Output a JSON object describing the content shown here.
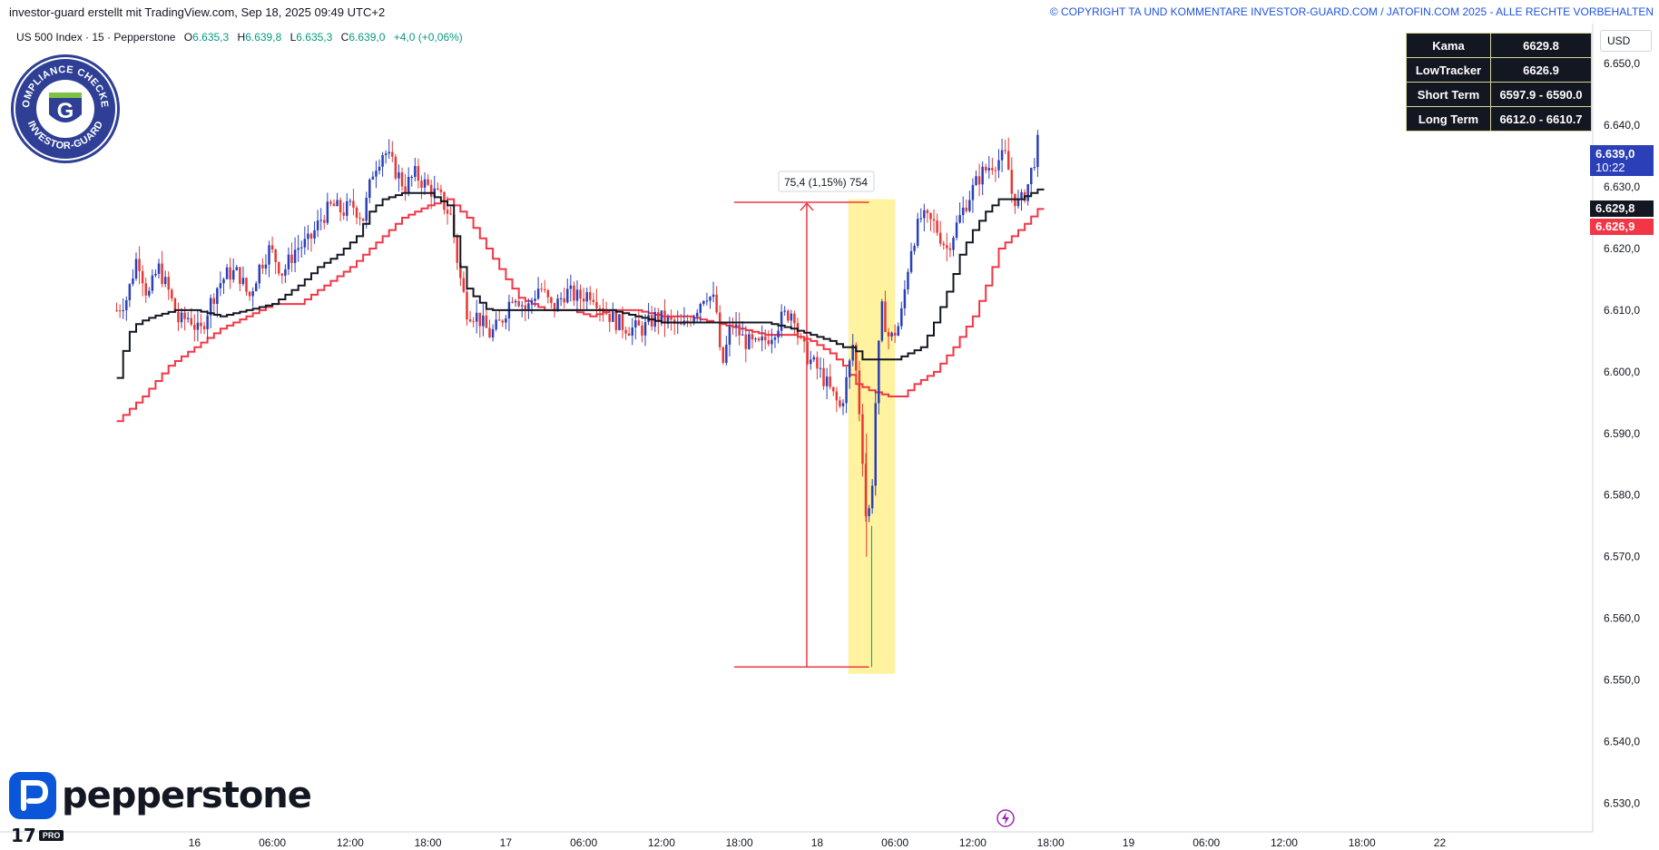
{
  "header": {
    "left_text": "investor-guard erstellt mit TradingView.com, Sep 18, 2025 09:49 UTC+2",
    "right_text": "© COPYRIGHT TA UND KOMMENTARE INVESTOR-GUARD.COM / JATOFIN.COM 2025 - ALLE RECHTE VORBEHALTEN"
  },
  "legend": {
    "symbol": "US 500 Index · 15 · Pepperstone",
    "o_label": "O",
    "o_value": "6.635,3",
    "h_label": "H",
    "h_value": "6.639,8",
    "l_label": "L",
    "l_value": "6.635,3",
    "c_label": "C",
    "c_value": "6.639,0",
    "change": "+4,0 (+0,06%)"
  },
  "info_table": [
    {
      "name": "Kama",
      "value": "6629.8"
    },
    {
      "name": "LowTracker",
      "value": "6626.9"
    },
    {
      "name": "Short Term",
      "value": "6597.9 - 6590.0"
    },
    {
      "name": "Long Term",
      "value": "6612.0 - 6610.7"
    }
  ],
  "currency": "USD",
  "price_labels": {
    "last_price": "6.639,0",
    "countdown": "10:22",
    "kama": "6.629,8",
    "lowtracker": "6.626,9"
  },
  "measure_label": "75,4 (1,15%) 754",
  "badge": {
    "top_text": "COMPLIANCE CHECKED",
    "bottom_text": "INVESTOR-GUARD",
    "letter": "G"
  },
  "brand": {
    "name": "pepperstone",
    "tv_mark": "17",
    "tv_pro": "PRO"
  },
  "colors": {
    "up": "#2a3fb8",
    "down": "#e53935",
    "kama": "#131722",
    "lowtracker": "#f23645",
    "measure": "#f23645",
    "highlight": "#fff29a",
    "last_price_bg": "#2a3fb8",
    "axis_text": "#131722"
  },
  "chart_data": {
    "type": "candlestick",
    "yaxis_ticks": [
      "6.650,0",
      "6.640,0",
      "6.630,0",
      "6.620,0",
      "6.610,0",
      "6.600,0",
      "6.590,0",
      "6.580,0",
      "6.570,0",
      "6.560,0",
      "6.550,0",
      "6.540,0",
      "6.530,0"
    ],
    "y_tick_values": [
      6650,
      6640,
      6630,
      6620,
      6610,
      6600,
      6590,
      6580,
      6570,
      6560,
      6550,
      6540,
      6530
    ],
    "ylim": [
      6525.5,
      6656.5
    ],
    "xaxis_ticks": [
      "16",
      "06:00",
      "12:00",
      "18:00",
      "17",
      "06:00",
      "12:00",
      "18:00",
      "18",
      "06:00",
      "12:00",
      "18:00",
      "19",
      "06:00",
      "12:00",
      "18:00",
      "22"
    ],
    "x_tick_hours": [
      6,
      12,
      18,
      24,
      30,
      36,
      42,
      48,
      54,
      60,
      66,
      72,
      78,
      84,
      90,
      96,
      102
    ],
    "x_unit": "hours since 15 Sep 18:00 (UTC+2)",
    "xlim": [
      0.8,
      112.6
    ],
    "close_path": [
      [
        0.0,
        6610
      ],
      [
        0.8,
        6612
      ],
      [
        1.6,
        6619
      ],
      [
        2.4,
        6612
      ],
      [
        3.2,
        6617
      ],
      [
        4.0,
        6613
      ],
      [
        4.8,
        6608
      ],
      [
        5.6,
        6609
      ],
      [
        6.4,
        6606
      ],
      [
        7.0,
        6610
      ],
      [
        7.8,
        6614
      ],
      [
        8.6,
        6616
      ],
      [
        9.4,
        6616
      ],
      [
        10.2,
        6612
      ],
      [
        11.0,
        6617
      ],
      [
        11.8,
        6620
      ],
      [
        12.8,
        6616
      ],
      [
        13.8,
        6620
      ],
      [
        14.8,
        6621
      ],
      [
        15.8,
        6625
      ],
      [
        16.6,
        6627
      ],
      [
        17.4,
        6626
      ],
      [
        18.2,
        6627
      ],
      [
        19.0,
        6625
      ],
      [
        19.8,
        6633
      ],
      [
        20.6,
        6636
      ],
      [
        21.4,
        6633
      ],
      [
        22.2,
        6630
      ],
      [
        23.0,
        6632
      ],
      [
        24.0,
        6630
      ],
      [
        25.0,
        6628
      ],
      [
        25.8,
        6625
      ],
      [
        26.4,
        6616
      ],
      [
        27.0,
        6610
      ],
      [
        27.8,
        6609
      ],
      [
        28.8,
        6606
      ],
      [
        29.6,
        6608
      ],
      [
        30.6,
        6613
      ],
      [
        31.6,
        6610
      ],
      [
        32.6,
        6614
      ],
      [
        33.6,
        6610
      ],
      [
        34.6,
        6613
      ],
      [
        35.6,
        6612
      ],
      [
        36.6,
        6613
      ],
      [
        37.6,
        6610
      ],
      [
        38.6,
        6608
      ],
      [
        39.6,
        6607
      ],
      [
        40.6,
        6607
      ],
      [
        41.6,
        6609
      ],
      [
        42.6,
        6608
      ],
      [
        43.6,
        6607
      ],
      [
        44.6,
        6610
      ],
      [
        45.4,
        6613
      ],
      [
        46.2,
        6611
      ],
      [
        46.6,
        6600
      ],
      [
        47.4,
        6608
      ],
      [
        48.4,
        6605
      ],
      [
        49.4,
        6604
      ],
      [
        50.4,
        6606
      ],
      [
        51.4,
        6609
      ],
      [
        52.2,
        6610
      ],
      [
        52.6,
        6605
      ],
      [
        53.4,
        6602
      ],
      [
        54.2,
        6600
      ],
      [
        55.0,
        6597
      ],
      [
        55.8,
        6594
      ],
      [
        56.4,
        6600
      ],
      [
        56.8,
        6605
      ],
      [
        57.4,
        6590
      ],
      [
        57.8,
        6575
      ],
      [
        58.2,
        6580
      ],
      [
        58.6,
        6600
      ],
      [
        59.0,
        6610
      ],
      [
        59.6,
        6605
      ],
      [
        60.4,
        6608
      ],
      [
        61.2,
        6620
      ],
      [
        62.0,
        6625
      ],
      [
        63.0,
        6624
      ],
      [
        64.0,
        6620
      ],
      [
        64.8,
        6624
      ],
      [
        65.6,
        6628
      ],
      [
        66.6,
        6632
      ],
      [
        67.6,
        6634
      ],
      [
        68.6,
        6635
      ],
      [
        69.0,
        6629
      ],
      [
        69.6,
        6627
      ],
      [
        70.2,
        6630
      ],
      [
        70.8,
        6635
      ],
      [
        71.2,
        6639
      ]
    ],
    "kama_path": [
      [
        0.0,
        6599
      ],
      [
        0.8,
        6606
      ],
      [
        1.6,
        6608
      ],
      [
        2.8,
        6609
      ],
      [
        4.5,
        6610
      ],
      [
        6.0,
        6610
      ],
      [
        8.0,
        6609
      ],
      [
        10.0,
        6610
      ],
      [
        12.0,
        6611
      ],
      [
        14.0,
        6614
      ],
      [
        15.5,
        6617
      ],
      [
        17.0,
        6619
      ],
      [
        18.5,
        6622
      ],
      [
        19.5,
        6626
      ],
      [
        20.5,
        6628
      ],
      [
        22.0,
        6629
      ],
      [
        24.0,
        6629
      ],
      [
        25.5,
        6627
      ],
      [
        26.2,
        6620
      ],
      [
        26.8,
        6614
      ],
      [
        27.6,
        6612
      ],
      [
        28.6,
        6610
      ],
      [
        30.0,
        6610
      ],
      [
        32.0,
        6610
      ],
      [
        34.0,
        6610
      ],
      [
        36.0,
        6610
      ],
      [
        38.0,
        6610
      ],
      [
        40.0,
        6609
      ],
      [
        42.0,
        6608
      ],
      [
        44.0,
        6608
      ],
      [
        46.0,
        6608
      ],
      [
        48.0,
        6608
      ],
      [
        50.0,
        6608
      ],
      [
        52.0,
        6607
      ],
      [
        53.5,
        6606
      ],
      [
        55.0,
        6605
      ],
      [
        56.0,
        6604
      ],
      [
        56.8,
        6604
      ],
      [
        57.4,
        6602
      ],
      [
        58.4,
        6602
      ],
      [
        60.0,
        6602
      ],
      [
        61.0,
        6603
      ],
      [
        62.0,
        6604
      ],
      [
        62.8,
        6607
      ],
      [
        63.4,
        6610
      ],
      [
        64.2,
        6614
      ],
      [
        65.0,
        6619
      ],
      [
        66.0,
        6623
      ],
      [
        67.0,
        6626
      ],
      [
        68.0,
        6628
      ],
      [
        69.5,
        6628
      ],
      [
        70.5,
        6629
      ],
      [
        71.2,
        6629.8
      ]
    ],
    "lowtracker_path": [
      [
        0.0,
        6592
      ],
      [
        2.0,
        6596
      ],
      [
        4.0,
        6601
      ],
      [
        6.0,
        6604
      ],
      [
        8.0,
        6607
      ],
      [
        10.0,
        6609
      ],
      [
        12.0,
        6611
      ],
      [
        14.0,
        6611
      ],
      [
        16.0,
        6614
      ],
      [
        18.0,
        6617
      ],
      [
        20.0,
        6621
      ],
      [
        22.0,
        6625
      ],
      [
        24.0,
        6627
      ],
      [
        25.5,
        6628
      ],
      [
        27.0,
        6625
      ],
      [
        28.5,
        6620
      ],
      [
        30.0,
        6615
      ],
      [
        31.0,
        6612
      ],
      [
        33.0,
        6610
      ],
      [
        35.0,
        6610
      ],
      [
        36.5,
        6609
      ],
      [
        38.0,
        6610
      ],
      [
        40.0,
        6610
      ],
      [
        42.0,
        6609
      ],
      [
        44.0,
        6609
      ],
      [
        46.0,
        6608
      ],
      [
        48.0,
        6607
      ],
      [
        50.0,
        6606
      ],
      [
        52.0,
        6606
      ],
      [
        53.5,
        6605
      ],
      [
        55.0,
        6603
      ],
      [
        56.0,
        6601
      ],
      [
        57.0,
        6598
      ],
      [
        58.0,
        6597
      ],
      [
        59.5,
        6596
      ],
      [
        60.5,
        6596
      ],
      [
        61.5,
        6598
      ],
      [
        63.0,
        6600
      ],
      [
        64.5,
        6604
      ],
      [
        66.0,
        6609
      ],
      [
        67.0,
        6614
      ],
      [
        68.0,
        6620
      ],
      [
        69.0,
        6622
      ],
      [
        70.0,
        6624
      ],
      [
        71.2,
        6626.9
      ]
    ],
    "measure": {
      "x": 53.2,
      "y_from": 6552.1,
      "y_to": 6627.5,
      "x_left": 47.6,
      "x_right": 58.0,
      "change": 75.4,
      "change_pct": 1.15,
      "ticks": 754
    },
    "highlight": {
      "x_from": 56.4,
      "x_to": 60.0,
      "y_from": 6551,
      "y_to": 6628
    },
    "last_price": 6639.0
  }
}
